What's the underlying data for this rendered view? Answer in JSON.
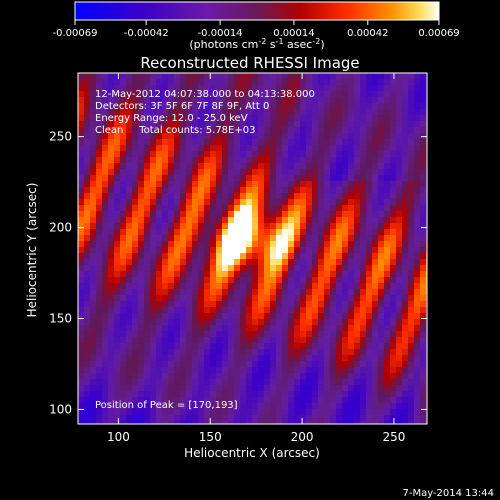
{
  "chart_data": {
    "type": "heatmap",
    "title": "Reconstructed RHESSI Image",
    "xlabel": "Heliocentric X (arcsec)",
    "ylabel": "Heliocentric Y (arcsec)",
    "xlim": [
      78,
      268
    ],
    "ylim": [
      92,
      285
    ],
    "x_ticks": [
      100,
      150,
      200,
      250
    ],
    "y_ticks": [
      100,
      150,
      200,
      250
    ],
    "colorbar": {
      "range": [
        -0.00069,
        0.00069
      ],
      "ticks": [
        "-0.00069",
        "-0.00042",
        "-0.00014",
        "0.00014",
        "0.00042",
        "0.00069"
      ],
      "tick_values": [
        -0.00069,
        -0.00042,
        -0.00014,
        0.00014,
        0.00042,
        0.00069
      ],
      "unit_label": "(photons cm",
      "unit_sup1": "-2",
      "unit_mid": " s",
      "unit_sup2": "-1",
      "unit_mid2": " asec",
      "unit_sup3": "-2",
      "unit_end": ")"
    },
    "peak": {
      "x": 170,
      "y": 193
    },
    "info_lines": [
      "12-May-2012 04:07:38.000 to 04:13:38.000",
      "Detectors: 3F 5F 6F 7F 8F 9F, Att 0",
      "Energy Range: 12.0 - 25.0 keV",
      "Clean     Total counts: 5.78E+03"
    ],
    "peak_label": "Position of Peak = [170,193]",
    "timestamp": "7-May-2014 13:44"
  }
}
